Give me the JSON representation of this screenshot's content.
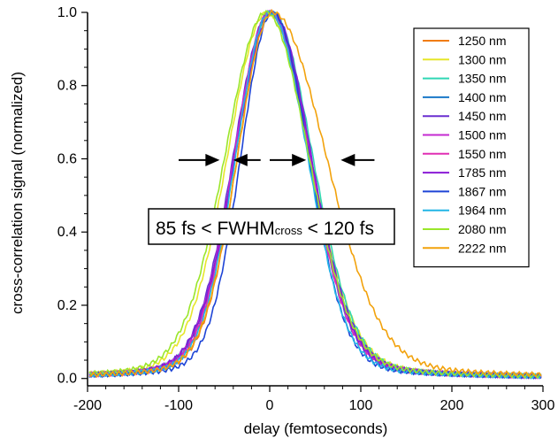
{
  "chart_data": {
    "type": "line",
    "title": "",
    "xlabel": "delay (femtoseconds)",
    "ylabel": "cross-correlation signal (normalized)",
    "xlim": [
      -200,
      300
    ],
    "ylim": [
      -0.02,
      1.0
    ],
    "xticks": [
      -200,
      -100,
      0,
      100,
      200,
      300
    ],
    "yticks": [
      0.0,
      0.2,
      0.4,
      0.6,
      0.8,
      1.0
    ],
    "xtick_labels": [
      "-200",
      "-100",
      "0",
      "100",
      "200",
      "300"
    ],
    "ytick_labels": [
      "0.0",
      "0.2",
      "0.4",
      "0.6",
      "0.8",
      "1.0"
    ],
    "grid": false,
    "legend_position": "top-right",
    "annotation": {
      "prefix": "85 fs < FWHM",
      "subscript": "cross",
      "suffix": " < 120 fs"
    },
    "arrow_markers": [
      {
        "from": -100,
        "to": -55,
        "y": 0.5
      },
      {
        "from": -10,
        "to": -40,
        "y": 0.5
      },
      {
        "from": 0,
        "to": 40,
        "y": 0.5
      },
      {
        "from": 115,
        "to": 78,
        "y": 0.5
      }
    ],
    "series": [
      {
        "name": "1250 nm",
        "color": "#f07c12",
        "peak": 2,
        "left": 43,
        "right": 50
      },
      {
        "name": "1300 nm",
        "color": "#e6e62a",
        "peak": -3,
        "left": 50,
        "right": 55
      },
      {
        "name": "1350 nm",
        "color": "#2fd6b4",
        "peak": 2,
        "left": 46,
        "right": 52
      },
      {
        "name": "1400 nm",
        "color": "#1a78c8",
        "peak": 0,
        "left": 44,
        "right": 50
      },
      {
        "name": "1450 nm",
        "color": "#6a2fd0",
        "peak": 0,
        "left": 46,
        "right": 52
      },
      {
        "name": "1500 nm",
        "color": "#c42ad0",
        "peak": 0,
        "left": 45,
        "right": 51
      },
      {
        "name": "1550 nm",
        "color": "#e02fb4",
        "peak": 0,
        "left": 44,
        "right": 50
      },
      {
        "name": "1785 nm",
        "color": "#8a1ad6",
        "peak": 3,
        "left": 47,
        "right": 49
      },
      {
        "name": "1867 nm",
        "color": "#1e44d6",
        "peak": 3,
        "left": 40,
        "right": 46
      },
      {
        "name": "1964 nm",
        "color": "#22b6e6",
        "peak": 0,
        "left": 43,
        "right": 48
      },
      {
        "name": "2080 nm",
        "color": "#9ae62a",
        "peak": -4,
        "left": 52,
        "right": 54
      },
      {
        "name": "2222 nm",
        "color": "#f2a20c",
        "peak": 3,
        "left": 44,
        "right": 68
      }
    ]
  }
}
